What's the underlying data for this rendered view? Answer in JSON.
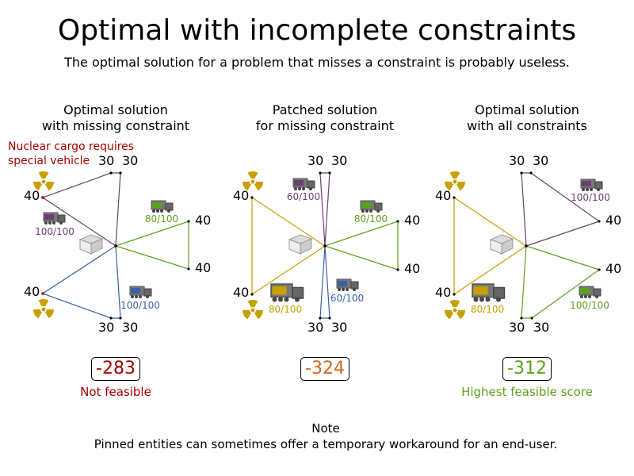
{
  "title": "Optimal with incomplete constraints",
  "subtitle": "The optimal solution for a problem that misses a constraint is probably useless.",
  "colors": {
    "purple": "#6b3f72",
    "green": "#5ea01c",
    "blue": "#3a5fa6",
    "yellow": "#c8a000",
    "red": "#a40000",
    "orange": "#d5661c"
  },
  "annotation": "Nuclear cargo requires\nspecial vehicle",
  "panels": [
    {
      "title_line1": "Optimal solution",
      "title_line2": "with missing constraint",
      "score": "-283",
      "status": "Not feasible",
      "vehicles": [
        {
          "label": "100/100",
          "color": "purple"
        },
        {
          "label": "80/100",
          "color": "green"
        },
        {
          "label": "100/100",
          "color": "blue"
        }
      ]
    },
    {
      "title_line1": "Patched solution",
      "title_line2": "for missing constraint",
      "score": "-324",
      "status": "",
      "vehicles": [
        {
          "label": "60/100",
          "color": "purple"
        },
        {
          "label": "80/100",
          "color": "green"
        },
        {
          "label": "60/100",
          "color": "blue"
        },
        {
          "label": "80/100",
          "color": "yellow"
        }
      ]
    },
    {
      "title_line1": "Optimal solution",
      "title_line2": "with all constraints",
      "score": "-312",
      "status": "Highest feasible score",
      "vehicles": [
        {
          "label": "100/100",
          "color": "purple"
        },
        {
          "label": "100/100",
          "color": "green"
        },
        {
          "label": "80/100",
          "color": "yellow"
        }
      ]
    }
  ],
  "demands": {
    "left": "40",
    "top": "30",
    "right": "40",
    "bottom": "30"
  },
  "note_title": "Note",
  "note_text": "Pinned entities can sometimes offer a temporary workaround for an end-user."
}
